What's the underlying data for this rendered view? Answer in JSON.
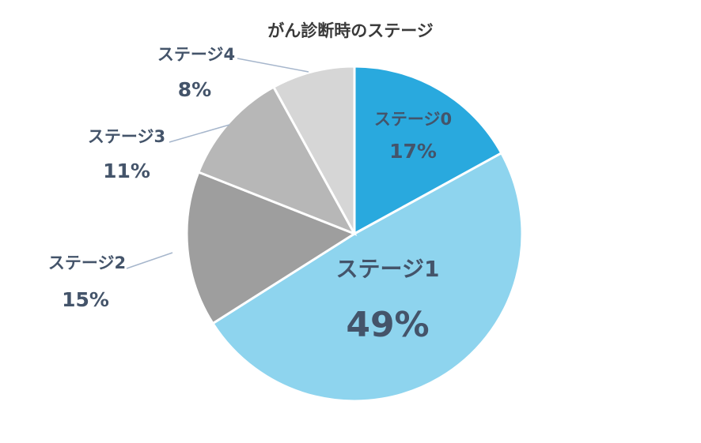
{
  "chart_data": {
    "type": "pie",
    "title": "がん診断時のステージ",
    "slices": [
      {
        "label": "ステージ0",
        "value": 17,
        "value_label": "17%",
        "color": "#29a9de"
      },
      {
        "label": "ステージ1",
        "value": 49,
        "value_label": "49%",
        "color": "#8ed4ee"
      },
      {
        "label": "ステージ2",
        "value": 15,
        "value_label": "15%",
        "color": "#9e9e9e"
      },
      {
        "label": "ステージ3",
        "value": 11,
        "value_label": "11%",
        "color": "#b7b7b7"
      },
      {
        "label": "ステージ4",
        "value": 8,
        "value_label": "8%",
        "color": "#d6d6d6"
      }
    ],
    "start_angle_deg": 0,
    "direction": "clockwise",
    "label_color": "#44546a",
    "leader_line_color": "#a6b6cc"
  }
}
